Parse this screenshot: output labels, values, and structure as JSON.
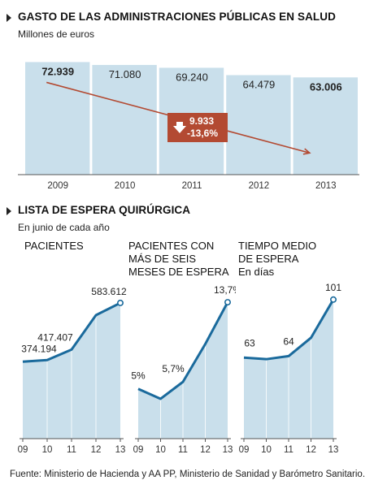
{
  "section1": {
    "title": "GASTO DE LAS ADMINISTRACIONES PÚBLICAS EN SALUD",
    "subtitle": "Millones de euros",
    "callout_value": "9.933",
    "callout_pct": "-13,6%"
  },
  "section2": {
    "title": "LISTA DE ESPERA QUIRÚRGICA",
    "subtitle": "En junio de cada año",
    "panel1_title": "PACIENTES",
    "panel2_title_lines": [
      "PACIENTES CON",
      "MÁS DE SEIS",
      "MESES DE ESPERA"
    ],
    "panel3_title_lines": [
      "TIEMPO MEDIO",
      "DE ESPERA"
    ],
    "panel3_unit": "En días"
  },
  "footer": "Fuente: Ministerio de Hacienda y AA PP, Ministerio de Sanidad y Barómetro Sanitario.",
  "colors": {
    "bar": "#c9dfeb",
    "line": "#1a6a9c",
    "trend": "#b34a32",
    "callout": "#b34a32"
  },
  "chart_data": [
    {
      "type": "bar",
      "title": "GASTO DE LAS ADMINISTRACIONES PÚBLICAS EN SALUD",
      "ylabel": "Millones de euros",
      "categories": [
        "2009",
        "2010",
        "2011",
        "2012",
        "2013"
      ],
      "values": [
        72939,
        71080,
        69240,
        64479,
        63006
      ],
      "labels": [
        "72.939",
        "71.080",
        "69.240",
        "64.479",
        "63.006"
      ],
      "bold_labels": [
        true,
        false,
        false,
        false,
        true
      ],
      "ylim": [
        0,
        80000
      ]
    },
    {
      "type": "area",
      "title": "PACIENTES",
      "categories": [
        "09",
        "10",
        "11",
        "12",
        "13"
      ],
      "values": [
        374194,
        380000,
        417407,
        540000,
        583612
      ],
      "point_labels": [
        "374.194",
        "",
        "417.407",
        "",
        "583.612"
      ],
      "ylim": [
        100000,
        650000
      ]
    },
    {
      "type": "area",
      "title": "PACIENTES CON MÁS DE SEIS MESES DE ESPERA",
      "categories": [
        "09",
        "10",
        "11",
        "12",
        "13"
      ],
      "values": [
        5,
        4,
        5.7,
        9.5,
        13.7
      ],
      "point_labels": [
        "5%",
        "",
        "5,7%",
        "",
        "13,7%"
      ],
      "ylim": [
        0,
        15.5
      ]
    },
    {
      "type": "area",
      "title": "TIEMPO MEDIO DE ESPERA",
      "ylabel": "En días",
      "categories": [
        "09",
        "10",
        "11",
        "12",
        "13"
      ],
      "values": [
        63,
        62,
        64,
        76,
        101
      ],
      "point_labels": [
        "63",
        "",
        "64",
        "",
        "101"
      ],
      "ylim": [
        10,
        111
      ]
    }
  ]
}
